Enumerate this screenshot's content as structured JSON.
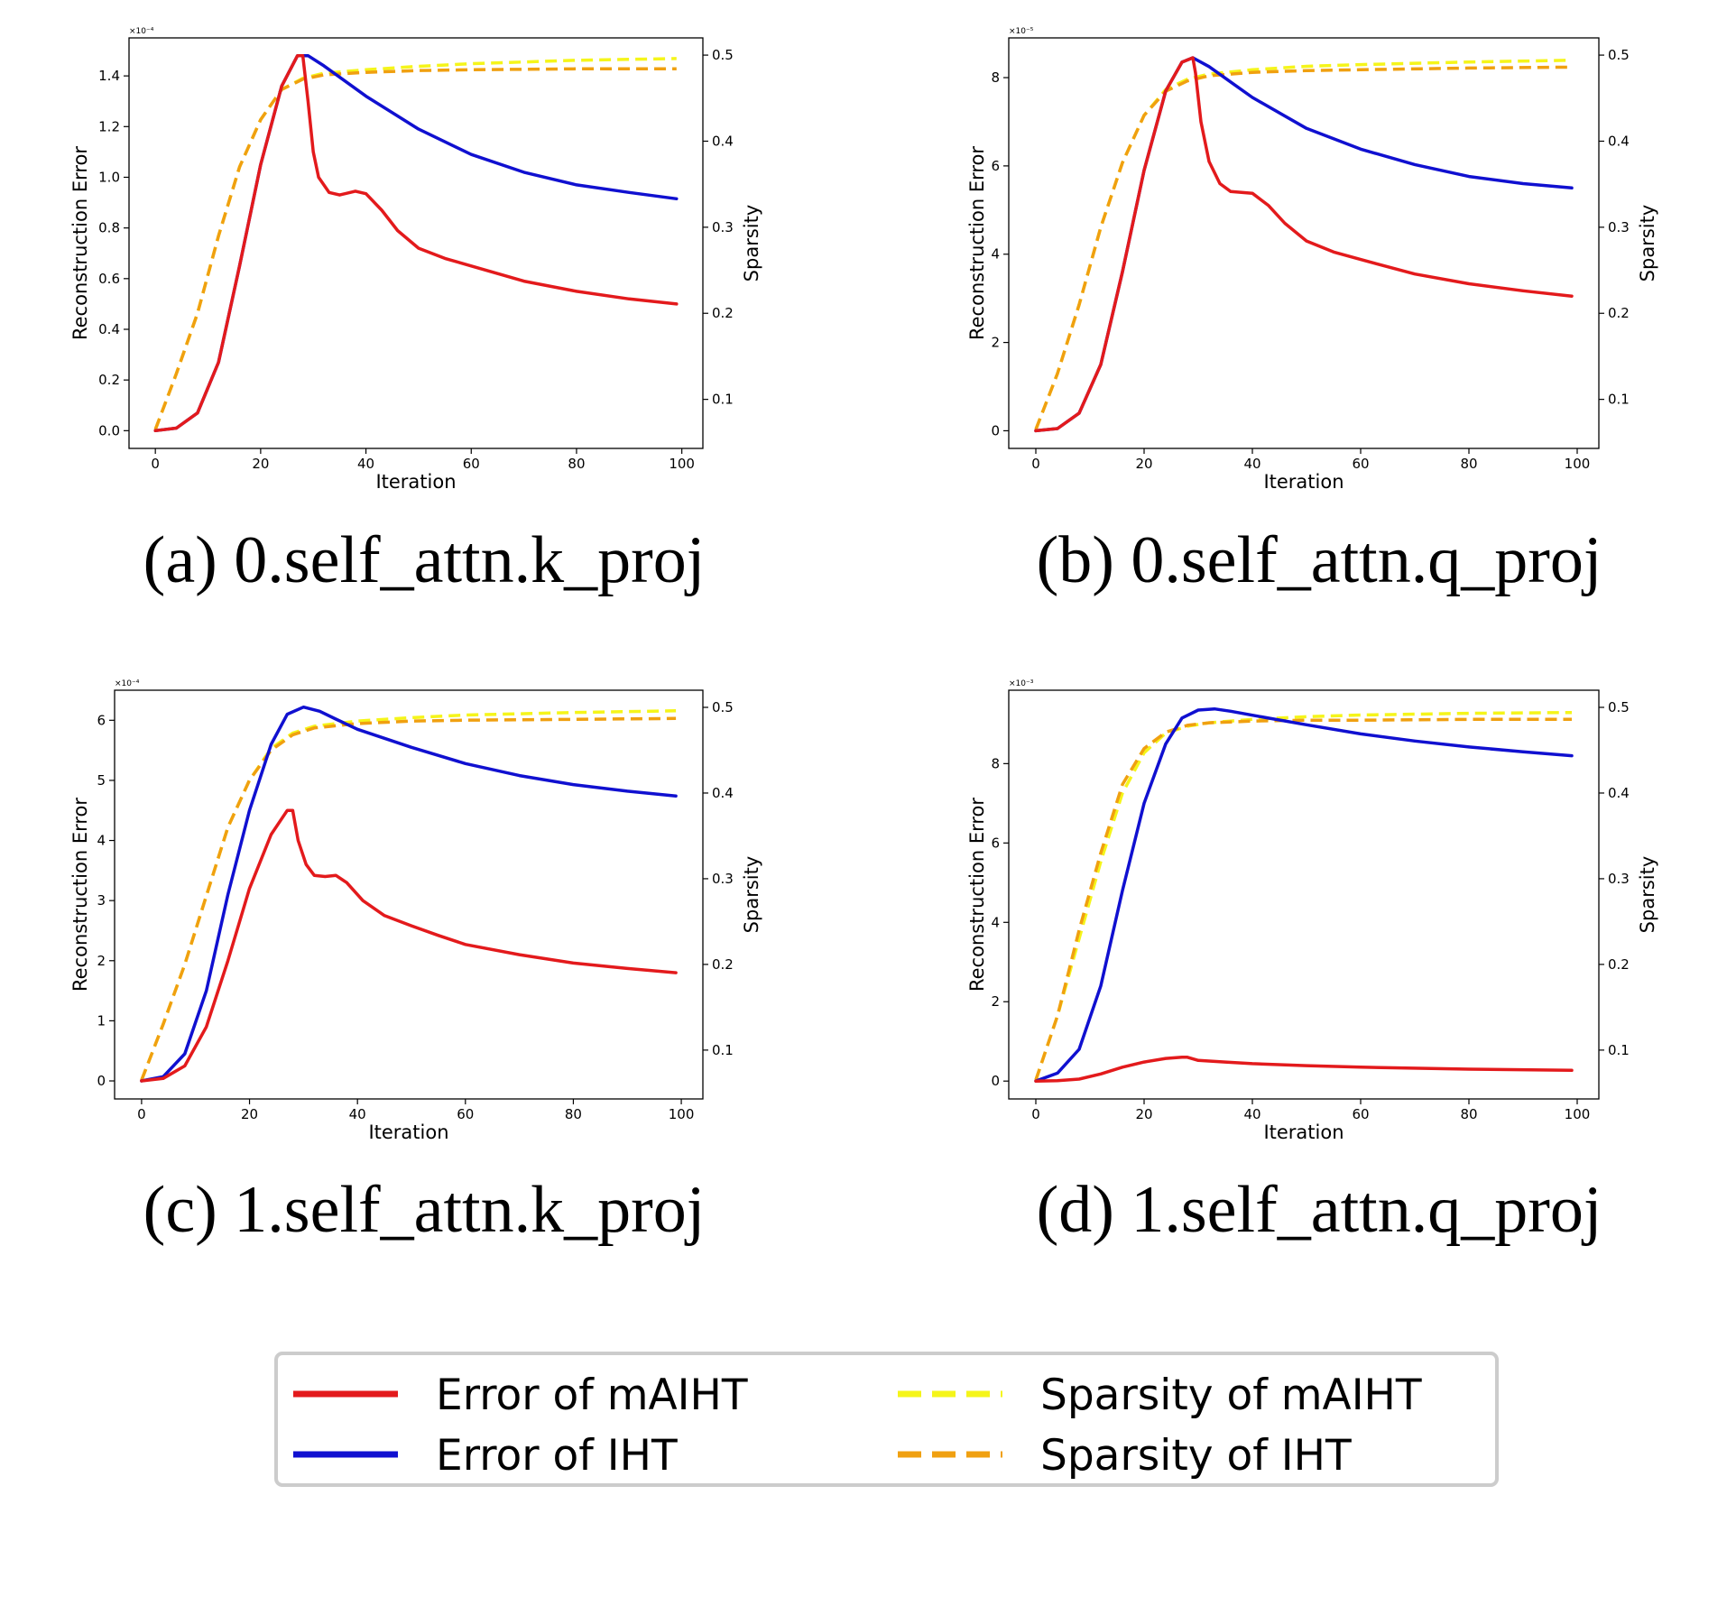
{
  "legend": {
    "entries": [
      {
        "label": "Error of mAIHT",
        "color": "#e31a1c",
        "style": "solid",
        "series": "error_maiht"
      },
      {
        "label": "Error of IHT",
        "color": "#1010d0",
        "style": "solid",
        "series": "error_iht"
      },
      {
        "label": "Sparsity of mAIHT",
        "color": "#f5f51a",
        "style": "dashed",
        "series": "sparsity_maiht"
      },
      {
        "label": "Sparsity of IHT",
        "color": "#f0a010",
        "style": "dashed",
        "series": "sparsity_iht"
      }
    ]
  },
  "chart_data": [
    {
      "type": "line",
      "id": "a",
      "caption": "(a)  0.self_attn.k_proj",
      "xlabel": "Iteration",
      "ylabel": "Reconstruction Error",
      "y2label": "Sparsity",
      "multiplier": "×10⁻⁴",
      "xlim": [
        -5,
        104
      ],
      "ylim": [
        -0.07,
        1.55
      ],
      "y2lim": [
        0.043,
        0.52
      ],
      "xticks": [
        0,
        20,
        40,
        60,
        80,
        100
      ],
      "yticks": [
        "0.0",
        "0.2",
        "0.4",
        "0.6",
        "0.8",
        "1.0",
        "1.2",
        "1.4"
      ],
      "y2ticks": [
        "0.1",
        "0.2",
        "0.3",
        "0.4",
        "0.5"
      ],
      "series": {
        "error_maiht": [
          [
            0,
            0
          ],
          [
            4,
            0.01
          ],
          [
            8,
            0.07
          ],
          [
            12,
            0.27
          ],
          [
            16,
            0.65
          ],
          [
            20,
            1.05
          ],
          [
            24,
            1.36
          ],
          [
            27,
            1.48
          ],
          [
            28,
            1.48
          ],
          [
            29,
            1.3
          ],
          [
            30,
            1.1
          ],
          [
            31,
            1.0
          ],
          [
            33,
            0.94
          ],
          [
            35,
            0.93
          ],
          [
            38,
            0.945
          ],
          [
            40,
            0.935
          ],
          [
            43,
            0.87
          ],
          [
            46,
            0.79
          ],
          [
            50,
            0.72
          ],
          [
            55,
            0.68
          ],
          [
            60,
            0.65
          ],
          [
            70,
            0.59
          ],
          [
            80,
            0.55
          ],
          [
            90,
            0.52
          ],
          [
            99,
            0.5
          ]
        ],
        "error_iht": [
          [
            0,
            0
          ],
          [
            4,
            0.01
          ],
          [
            8,
            0.07
          ],
          [
            12,
            0.27
          ],
          [
            16,
            0.65
          ],
          [
            20,
            1.05
          ],
          [
            24,
            1.36
          ],
          [
            27,
            1.48
          ],
          [
            29,
            1.48
          ],
          [
            32,
            1.44
          ],
          [
            36,
            1.38
          ],
          [
            40,
            1.32
          ],
          [
            50,
            1.19
          ],
          [
            60,
            1.09
          ],
          [
            70,
            1.02
          ],
          [
            80,
            0.97
          ],
          [
            90,
            0.94
          ],
          [
            99,
            0.915
          ]
        ],
        "sparsity_maiht": [
          [
            0,
            0.065
          ],
          [
            4,
            0.13
          ],
          [
            8,
            0.2
          ],
          [
            12,
            0.29
          ],
          [
            16,
            0.37
          ],
          [
            20,
            0.425
          ],
          [
            24,
            0.46
          ],
          [
            28,
            0.473
          ],
          [
            32,
            0.479
          ],
          [
            40,
            0.483
          ],
          [
            50,
            0.487
          ],
          [
            60,
            0.49
          ],
          [
            70,
            0.492
          ],
          [
            80,
            0.494
          ],
          [
            90,
            0.495
          ],
          [
            99,
            0.496
          ]
        ],
        "sparsity_iht": [
          [
            0,
            0.065
          ],
          [
            4,
            0.13
          ],
          [
            8,
            0.2
          ],
          [
            12,
            0.29
          ],
          [
            16,
            0.37
          ],
          [
            20,
            0.425
          ],
          [
            24,
            0.46
          ],
          [
            28,
            0.472
          ],
          [
            32,
            0.477
          ],
          [
            40,
            0.48
          ],
          [
            50,
            0.482
          ],
          [
            60,
            0.483
          ],
          [
            80,
            0.484
          ],
          [
            99,
            0.484
          ]
        ]
      }
    },
    {
      "type": "line",
      "id": "b",
      "caption": "(b)  0.self_attn.q_proj",
      "xlabel": "Iteration",
      "ylabel": "Reconstruction Error",
      "y2label": "Sparsity",
      "multiplier": "×10⁻⁵",
      "xlim": [
        -5,
        104
      ],
      "ylim": [
        -0.4,
        8.9
      ],
      "y2lim": [
        0.043,
        0.52
      ],
      "xticks": [
        0,
        20,
        40,
        60,
        80,
        100
      ],
      "yticks": [
        "0",
        "2",
        "4",
        "6",
        "8"
      ],
      "y2ticks": [
        "0.1",
        "0.2",
        "0.3",
        "0.4",
        "0.5"
      ],
      "series": {
        "error_maiht": [
          [
            0,
            0
          ],
          [
            4,
            0.05
          ],
          [
            8,
            0.4
          ],
          [
            12,
            1.5
          ],
          [
            16,
            3.6
          ],
          [
            20,
            5.9
          ],
          [
            24,
            7.7
          ],
          [
            27,
            8.35
          ],
          [
            29,
            8.45
          ],
          [
            29.5,
            8.1
          ],
          [
            30.5,
            7.0
          ],
          [
            32,
            6.1
          ],
          [
            34,
            5.6
          ],
          [
            36,
            5.42
          ],
          [
            40,
            5.38
          ],
          [
            43,
            5.1
          ],
          [
            46,
            4.7
          ],
          [
            50,
            4.3
          ],
          [
            55,
            4.05
          ],
          [
            60,
            3.88
          ],
          [
            70,
            3.55
          ],
          [
            80,
            3.33
          ],
          [
            90,
            3.17
          ],
          [
            99,
            3.05
          ]
        ],
        "error_iht": [
          [
            0,
            0
          ],
          [
            4,
            0.05
          ],
          [
            8,
            0.4
          ],
          [
            12,
            1.5
          ],
          [
            16,
            3.6
          ],
          [
            20,
            5.9
          ],
          [
            24,
            7.7
          ],
          [
            27,
            8.35
          ],
          [
            29,
            8.45
          ],
          [
            32,
            8.25
          ],
          [
            36,
            7.9
          ],
          [
            40,
            7.55
          ],
          [
            50,
            6.85
          ],
          [
            60,
            6.38
          ],
          [
            70,
            6.03
          ],
          [
            80,
            5.76
          ],
          [
            90,
            5.6
          ],
          [
            99,
            5.5
          ]
        ],
        "sparsity_maiht": [
          [
            0,
            0.065
          ],
          [
            4,
            0.13
          ],
          [
            8,
            0.21
          ],
          [
            12,
            0.3
          ],
          [
            16,
            0.375
          ],
          [
            20,
            0.43
          ],
          [
            24,
            0.46
          ],
          [
            28,
            0.472
          ],
          [
            32,
            0.478
          ],
          [
            40,
            0.483
          ],
          [
            50,
            0.487
          ],
          [
            60,
            0.489
          ],
          [
            80,
            0.492
          ],
          [
            99,
            0.494
          ]
        ],
        "sparsity_iht": [
          [
            0,
            0.065
          ],
          [
            4,
            0.13
          ],
          [
            8,
            0.21
          ],
          [
            12,
            0.3
          ],
          [
            16,
            0.375
          ],
          [
            20,
            0.43
          ],
          [
            24,
            0.458
          ],
          [
            28,
            0.47
          ],
          [
            32,
            0.476
          ],
          [
            40,
            0.48
          ],
          [
            50,
            0.482
          ],
          [
            60,
            0.483
          ],
          [
            80,
            0.485
          ],
          [
            99,
            0.486
          ]
        ]
      }
    },
    {
      "type": "line",
      "id": "c",
      "caption": "(c)  1.self_attn.k_proj",
      "xlabel": "Iteration",
      "ylabel": "Reconstruction Error",
      "y2label": "Sparsity",
      "multiplier": "×10⁻⁴",
      "xlim": [
        -5,
        104
      ],
      "ylim": [
        -0.3,
        6.5
      ],
      "y2lim": [
        0.043,
        0.52
      ],
      "xticks": [
        0,
        20,
        40,
        60,
        80,
        100
      ],
      "yticks": [
        "0",
        "1",
        "2",
        "3",
        "4",
        "5",
        "6"
      ],
      "y2ticks": [
        "0.1",
        "0.2",
        "0.3",
        "0.4",
        "0.5"
      ],
      "series": {
        "error_maiht": [
          [
            0,
            0
          ],
          [
            4,
            0.04
          ],
          [
            8,
            0.25
          ],
          [
            12,
            0.9
          ],
          [
            16,
            2.0
          ],
          [
            20,
            3.2
          ],
          [
            24,
            4.1
          ],
          [
            27,
            4.5
          ],
          [
            28,
            4.5
          ],
          [
            29,
            4.0
          ],
          [
            30.5,
            3.6
          ],
          [
            32,
            3.42
          ],
          [
            34,
            3.4
          ],
          [
            36,
            3.42
          ],
          [
            38,
            3.3
          ],
          [
            41,
            3.0
          ],
          [
            45,
            2.75
          ],
          [
            50,
            2.58
          ],
          [
            55,
            2.42
          ],
          [
            60,
            2.27
          ],
          [
            70,
            2.1
          ],
          [
            80,
            1.96
          ],
          [
            90,
            1.87
          ],
          [
            99,
            1.8
          ]
        ],
        "error_iht": [
          [
            0,
            0
          ],
          [
            4,
            0.07
          ],
          [
            8,
            0.45
          ],
          [
            12,
            1.5
          ],
          [
            16,
            3.1
          ],
          [
            20,
            4.5
          ],
          [
            24,
            5.6
          ],
          [
            27,
            6.1
          ],
          [
            30,
            6.22
          ],
          [
            33,
            6.15
          ],
          [
            36,
            6.02
          ],
          [
            40,
            5.85
          ],
          [
            50,
            5.55
          ],
          [
            60,
            5.28
          ],
          [
            70,
            5.08
          ],
          [
            80,
            4.93
          ],
          [
            90,
            4.82
          ],
          [
            99,
            4.74
          ]
        ],
        "sparsity_maiht": [
          [
            0,
            0.065
          ],
          [
            4,
            0.13
          ],
          [
            8,
            0.2
          ],
          [
            12,
            0.28
          ],
          [
            16,
            0.36
          ],
          [
            20,
            0.415
          ],
          [
            24,
            0.452
          ],
          [
            28,
            0.47
          ],
          [
            32,
            0.478
          ],
          [
            40,
            0.484
          ],
          [
            50,
            0.488
          ],
          [
            60,
            0.491
          ],
          [
            80,
            0.494
          ],
          [
            99,
            0.496
          ]
        ],
        "sparsity_iht": [
          [
            0,
            0.065
          ],
          [
            4,
            0.13
          ],
          [
            8,
            0.2
          ],
          [
            12,
            0.28
          ],
          [
            16,
            0.36
          ],
          [
            20,
            0.415
          ],
          [
            24,
            0.45
          ],
          [
            28,
            0.468
          ],
          [
            32,
            0.476
          ],
          [
            40,
            0.481
          ],
          [
            50,
            0.484
          ],
          [
            60,
            0.485
          ],
          [
            80,
            0.486
          ],
          [
            99,
            0.487
          ]
        ]
      }
    },
    {
      "type": "line",
      "id": "d",
      "caption": "(d)  1.self_attn.q_proj",
      "xlabel": "Iteration",
      "ylabel": "Reconstruction Error",
      "y2label": "Sparsity",
      "multiplier": "×10⁻³",
      "xlim": [
        -5,
        104
      ],
      "ylim": [
        -0.45,
        9.85
      ],
      "y2lim": [
        0.043,
        0.52
      ],
      "xticks": [
        0,
        20,
        40,
        60,
        80,
        100
      ],
      "yticks": [
        "0",
        "2",
        "4",
        "6",
        "8"
      ],
      "y2ticks": [
        "0.1",
        "0.2",
        "0.3",
        "0.4",
        "0.5"
      ],
      "series": {
        "error_maiht": [
          [
            0,
            0
          ],
          [
            4,
            0.01
          ],
          [
            8,
            0.05
          ],
          [
            12,
            0.18
          ],
          [
            16,
            0.35
          ],
          [
            20,
            0.48
          ],
          [
            24,
            0.57
          ],
          [
            27,
            0.6
          ],
          [
            28,
            0.6
          ],
          [
            30,
            0.52
          ],
          [
            35,
            0.48
          ],
          [
            40,
            0.44
          ],
          [
            50,
            0.39
          ],
          [
            60,
            0.35
          ],
          [
            80,
            0.3
          ],
          [
            99,
            0.27
          ]
        ],
        "error_iht": [
          [
            0,
            0
          ],
          [
            4,
            0.2
          ],
          [
            8,
            0.8
          ],
          [
            12,
            2.4
          ],
          [
            16,
            4.8
          ],
          [
            20,
            7.0
          ],
          [
            24,
            8.5
          ],
          [
            27,
            9.15
          ],
          [
            30,
            9.35
          ],
          [
            33,
            9.38
          ],
          [
            36,
            9.32
          ],
          [
            40,
            9.22
          ],
          [
            50,
            8.98
          ],
          [
            60,
            8.75
          ],
          [
            70,
            8.57
          ],
          [
            80,
            8.42
          ],
          [
            90,
            8.3
          ],
          [
            99,
            8.2
          ]
        ],
        "sparsity_maiht": [
          [
            0,
            0.065
          ],
          [
            4,
            0.14
          ],
          [
            8,
            0.23
          ],
          [
            12,
            0.32
          ],
          [
            16,
            0.4
          ],
          [
            20,
            0.447
          ],
          [
            24,
            0.47
          ],
          [
            28,
            0.478
          ],
          [
            32,
            0.482
          ],
          [
            40,
            0.486
          ],
          [
            50,
            0.489
          ],
          [
            60,
            0.491
          ],
          [
            80,
            0.493
          ],
          [
            99,
            0.494
          ]
        ],
        "sparsity_iht": [
          [
            0,
            0.065
          ],
          [
            4,
            0.14
          ],
          [
            8,
            0.24
          ],
          [
            12,
            0.33
          ],
          [
            16,
            0.41
          ],
          [
            20,
            0.452
          ],
          [
            24,
            0.471
          ],
          [
            28,
            0.479
          ],
          [
            32,
            0.482
          ],
          [
            40,
            0.484
          ],
          [
            50,
            0.485
          ],
          [
            60,
            0.485
          ],
          [
            80,
            0.486
          ],
          [
            99,
            0.486
          ]
        ]
      }
    }
  ]
}
